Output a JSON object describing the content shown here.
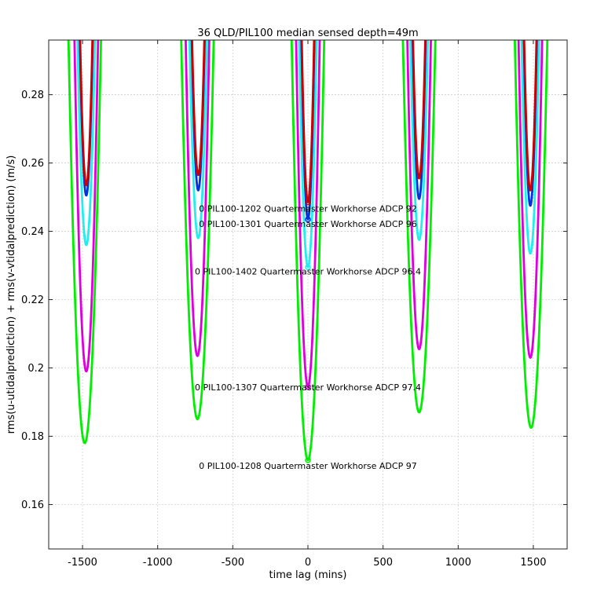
{
  "chart_data": {
    "type": "line",
    "title": "36 QLD/PIL100 median sensed depth=49m",
    "xlabel": "time lag (mins)",
    "ylabel": "rms(u-utidalprediction) + rms(v-vtidalprediction) (m/s)",
    "xlim": [
      -1725,
      1725
    ],
    "ylim": [
      0.147,
      0.296
    ],
    "xticks": [
      -1500,
      -1000,
      -500,
      0,
      500,
      1000,
      1500
    ],
    "yticks": [
      0.16,
      0.18,
      0.2,
      0.22,
      0.24,
      0.26,
      0.28
    ],
    "ytick_labels": [
      "0.16",
      "0.18",
      "0.2",
      "0.22",
      "0.24",
      "0.26",
      "0.28"
    ],
    "grid": true,
    "series": [
      {
        "color": "#00ee00",
        "minima": [
          [
            -1485,
            0.178
          ],
          [
            -735,
            0.185
          ],
          [
            0,
            0.173
          ],
          [
            740,
            0.187
          ],
          [
            1485,
            0.1825
          ]
        ],
        "halfwidth_mins": 110,
        "annotation": "0 PIL100-1208 Quartermaster Workhorse ADCP 97"
      },
      {
        "color": "#dd00dd",
        "minima": [
          [
            -1475,
            0.199
          ],
          [
            -735,
            0.2035
          ],
          [
            0,
            0.1945
          ],
          [
            740,
            0.2055
          ],
          [
            1480,
            0.203
          ]
        ],
        "halfwidth_mins": 80,
        "annotation": "0 PIL100-1307 Quartermaster Workhorse ADCP 97.4"
      },
      {
        "color": "#22eeee",
        "minima": [
          [
            -1475,
            0.236
          ],
          [
            -730,
            0.238
          ],
          [
            0,
            0.2295
          ],
          [
            740,
            0.2375
          ],
          [
            1480,
            0.2335
          ]
        ],
        "halfwidth_mins": 60,
        "annotation": "0 PIL100-1402 Quartermaster Workhorse ADCP 96.4"
      },
      {
        "color": "#0033dd",
        "minima": [
          [
            -1475,
            0.2505
          ],
          [
            -730,
            0.252
          ],
          [
            0,
            0.2435
          ],
          [
            740,
            0.2495
          ],
          [
            1480,
            0.2475
          ]
        ],
        "halfwidth_mins": 45,
        "annotation": "0 PIL100-1301 Quartermaster Workhorse ADCP 96"
      },
      {
        "color": "#cc0000",
        "minima": [
          [
            -1475,
            0.2535
          ],
          [
            -730,
            0.2565
          ],
          [
            0,
            0.2485
          ],
          [
            740,
            0.2555
          ],
          [
            1480,
            0.252
          ]
        ],
        "halfwidth_mins": 43,
        "annotation": "0 PIL100-1202 Quartermaster Workhorse ADCP 92"
      }
    ]
  }
}
